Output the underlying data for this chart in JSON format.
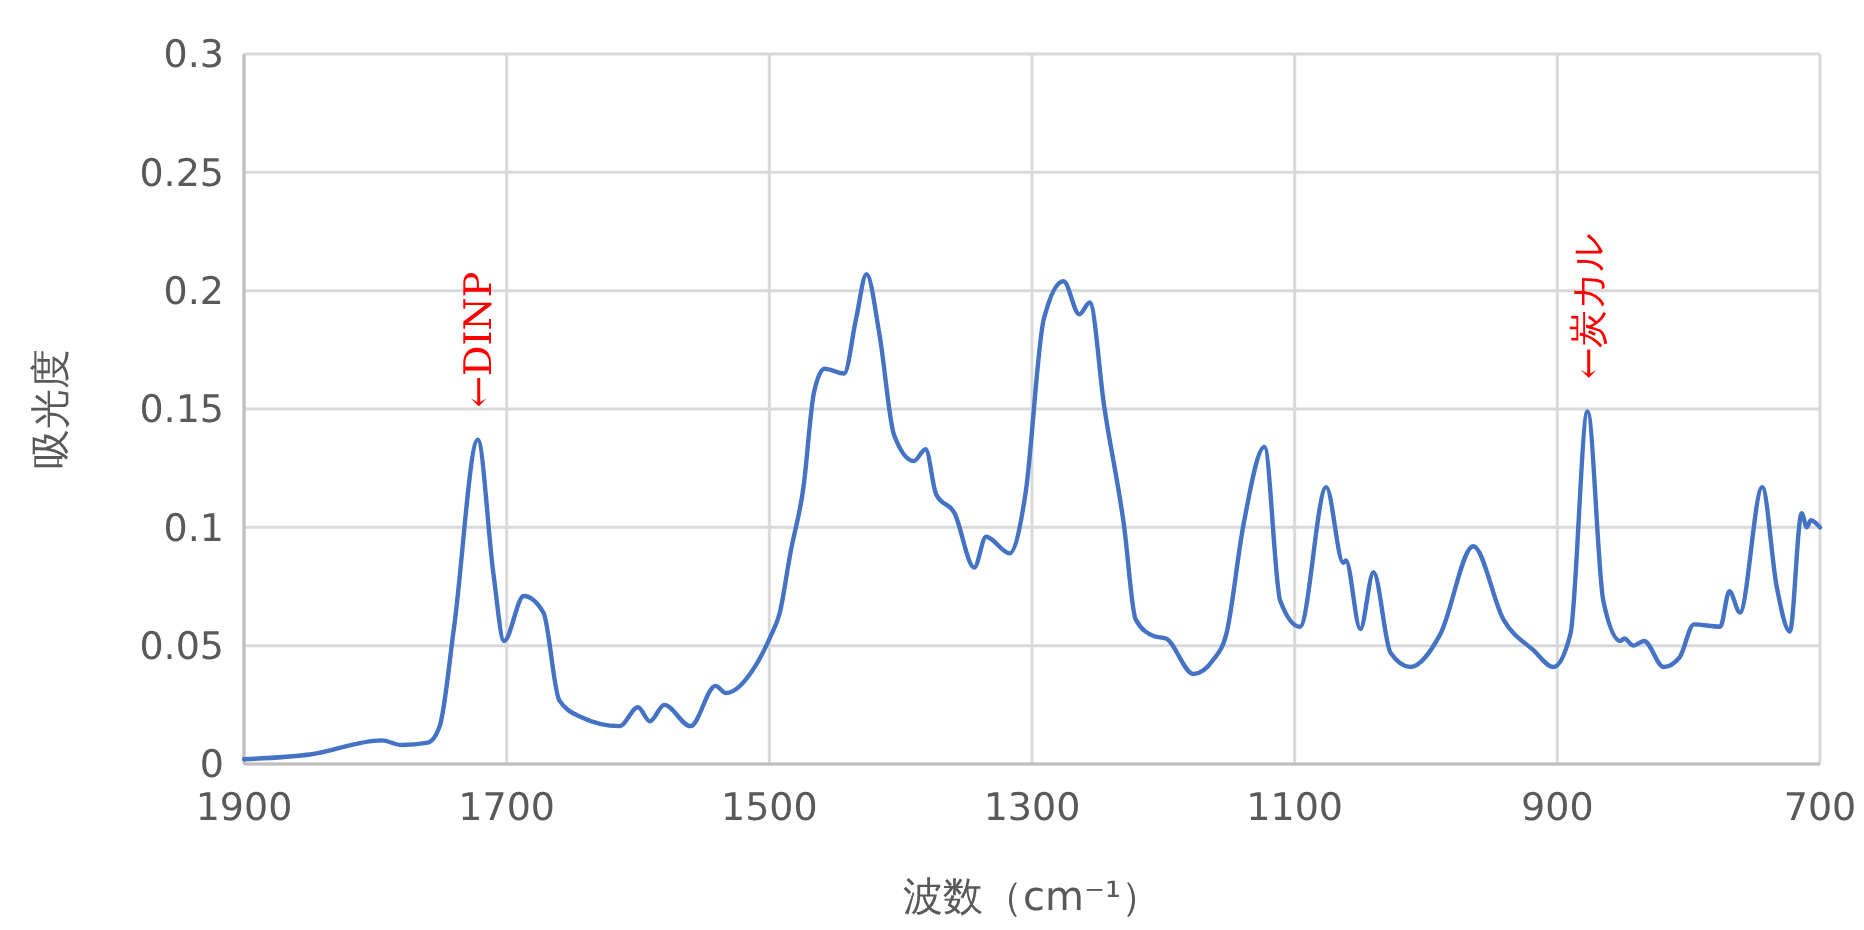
{
  "chart_data": {
    "type": "line",
    "xlabel": "波数（cm⁻¹）",
    "ylabel": "吸光度",
    "xlim": [
      1900,
      700
    ],
    "xticks": [
      1900,
      1700,
      1500,
      1300,
      1100,
      900,
      700
    ],
    "ylim": [
      0,
      0.3
    ],
    "yticks": [
      0,
      0.05,
      0.1,
      0.15,
      0.2,
      0.25,
      0.3
    ],
    "grid": true,
    "line_style": "solid",
    "x": [
      1900,
      1850,
      1795,
      1780,
      1760,
      1751,
      1740,
      1722,
      1710,
      1702,
      1687,
      1672,
      1660,
      1644,
      1614,
      1600,
      1591,
      1580,
      1560,
      1541,
      1533,
      1510,
      1499,
      1492,
      1484,
      1474,
      1466,
      1458,
      1443,
      1434,
      1426,
      1416,
      1405,
      1390,
      1381,
      1373,
      1359,
      1344,
      1335,
      1317,
      1305,
      1291,
      1276,
      1264,
      1256,
      1245,
      1230,
      1221,
      1207,
      1198,
      1177,
      1162,
      1152,
      1139,
      1123,
      1111,
      1096,
      1076,
      1063,
      1061,
      1050,
      1040,
      1027,
      1012,
      989,
      964,
      941,
      918,
      903,
      890,
      877,
      865,
      852,
      849,
      842,
      834,
      819,
      807,
      796,
      776,
      769,
      761,
      744,
      733,
      723,
      714,
      710,
      707,
      700
    ],
    "series": [
      {
        "color": "#4472c4",
        "values": [
          0.002,
          0.004,
          0.01,
          0.008,
          0.009,
          0.016,
          0.058,
          0.137,
          0.08,
          0.052,
          0.071,
          0.064,
          0.027,
          0.02,
          0.016,
          0.024,
          0.018,
          0.025,
          0.016,
          0.033,
          0.03,
          0.042,
          0.054,
          0.064,
          0.089,
          0.117,
          0.157,
          0.167,
          0.165,
          0.188,
          0.207,
          0.181,
          0.139,
          0.128,
          0.133,
          0.114,
          0.106,
          0.083,
          0.096,
          0.089,
          0.114,
          0.188,
          0.204,
          0.19,
          0.195,
          0.151,
          0.101,
          0.061,
          0.054,
          0.053,
          0.038,
          0.044,
          0.055,
          0.101,
          0.134,
          0.069,
          0.058,
          0.117,
          0.085,
          0.086,
          0.057,
          0.081,
          0.047,
          0.041,
          0.055,
          0.092,
          0.061,
          0.048,
          0.041,
          0.055,
          0.149,
          0.069,
          0.052,
          0.053,
          0.05,
          0.052,
          0.041,
          0.045,
          0.059,
          0.058,
          0.073,
          0.064,
          0.117,
          0.075,
          0.056,
          0.106,
          0.1,
          0.103,
          0.1
        ]
      }
    ],
    "annotations": [
      {
        "text": "←DINP",
        "x": 1722,
        "y": 0.137
      },
      {
        "text": "←炭カル",
        "x": 877,
        "y": 0.149
      }
    ]
  }
}
